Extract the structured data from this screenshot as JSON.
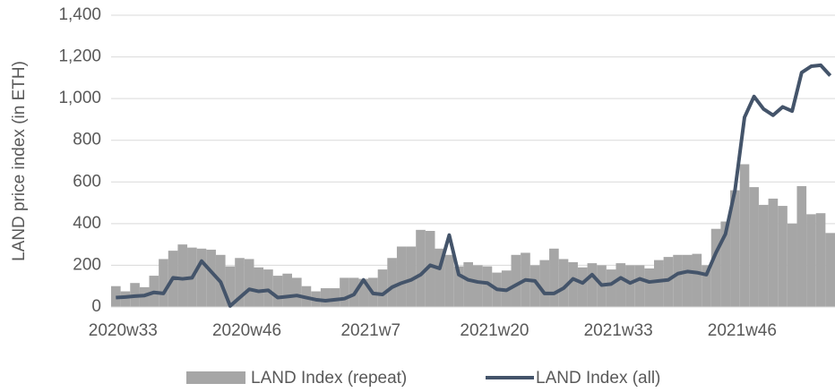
{
  "chart_data": {
    "type": "bar_line",
    "y_axis_label": "LAND price index (in ETH)",
    "categories": [
      "2020w33",
      null,
      null,
      null,
      null,
      null,
      null,
      null,
      null,
      null,
      null,
      null,
      null,
      "2020w46",
      null,
      null,
      null,
      null,
      null,
      null,
      null,
      null,
      null,
      null,
      null,
      null,
      "2021w7",
      null,
      null,
      null,
      null,
      null,
      null,
      null,
      null,
      null,
      null,
      null,
      null,
      "2021w20",
      null,
      null,
      null,
      null,
      null,
      null,
      null,
      null,
      null,
      null,
      null,
      null,
      "2021w33",
      null,
      null,
      null,
      null,
      null,
      null,
      null,
      null,
      null,
      null,
      null,
      null,
      "2021w46",
      null,
      null,
      null,
      null,
      null,
      null,
      null,
      null,
      null,
      null
    ],
    "series": [
      {
        "name": "LAND Index (repeat)",
        "kind": "bar",
        "color": "#a6a6a6",
        "values": [
          100,
          75,
          115,
          95,
          150,
          230,
          270,
          300,
          285,
          280,
          275,
          250,
          195,
          235,
          230,
          190,
          180,
          150,
          160,
          140,
          100,
          75,
          90,
          90,
          140,
          140,
          135,
          140,
          180,
          235,
          290,
          290,
          370,
          365,
          280,
          250,
          195,
          215,
          200,
          195,
          165,
          175,
          250,
          260,
          200,
          225,
          280,
          230,
          215,
          190,
          210,
          200,
          180,
          210,
          200,
          200,
          185,
          225,
          240,
          250,
          250,
          255,
          200,
          375,
          410,
          560,
          685,
          575,
          490,
          520,
          485,
          400,
          580,
          445,
          450,
          355
        ]
      },
      {
        "name": "LAND Index (all)",
        "kind": "line",
        "color": "#44546a",
        "values": [
          45,
          48,
          52,
          55,
          70,
          65,
          140,
          135,
          140,
          220,
          170,
          120,
          5,
          45,
          85,
          75,
          80,
          45,
          50,
          55,
          45,
          35,
          30,
          35,
          40,
          60,
          130,
          65,
          60,
          95,
          115,
          130,
          155,
          200,
          185,
          345,
          155,
          130,
          120,
          115,
          85,
          80,
          105,
          130,
          125,
          65,
          65,
          90,
          135,
          115,
          155,
          105,
          110,
          140,
          115,
          135,
          120,
          125,
          130,
          160,
          170,
          165,
          155,
          260,
          350,
          560,
          910,
          1010,
          950,
          920,
          960,
          940,
          1125,
          1155,
          1160,
          1110
        ]
      }
    ],
    "ylim": [
      0,
      1400
    ],
    "yticks": [
      0,
      200,
      400,
      600,
      800,
      {
        "value": 1000,
        "label": "1,000"
      },
      {
        "value": 1200,
        "label": "1,200"
      },
      {
        "value": 1400,
        "label": "1,400"
      }
    ],
    "grid": true,
    "legend": "bottom"
  }
}
